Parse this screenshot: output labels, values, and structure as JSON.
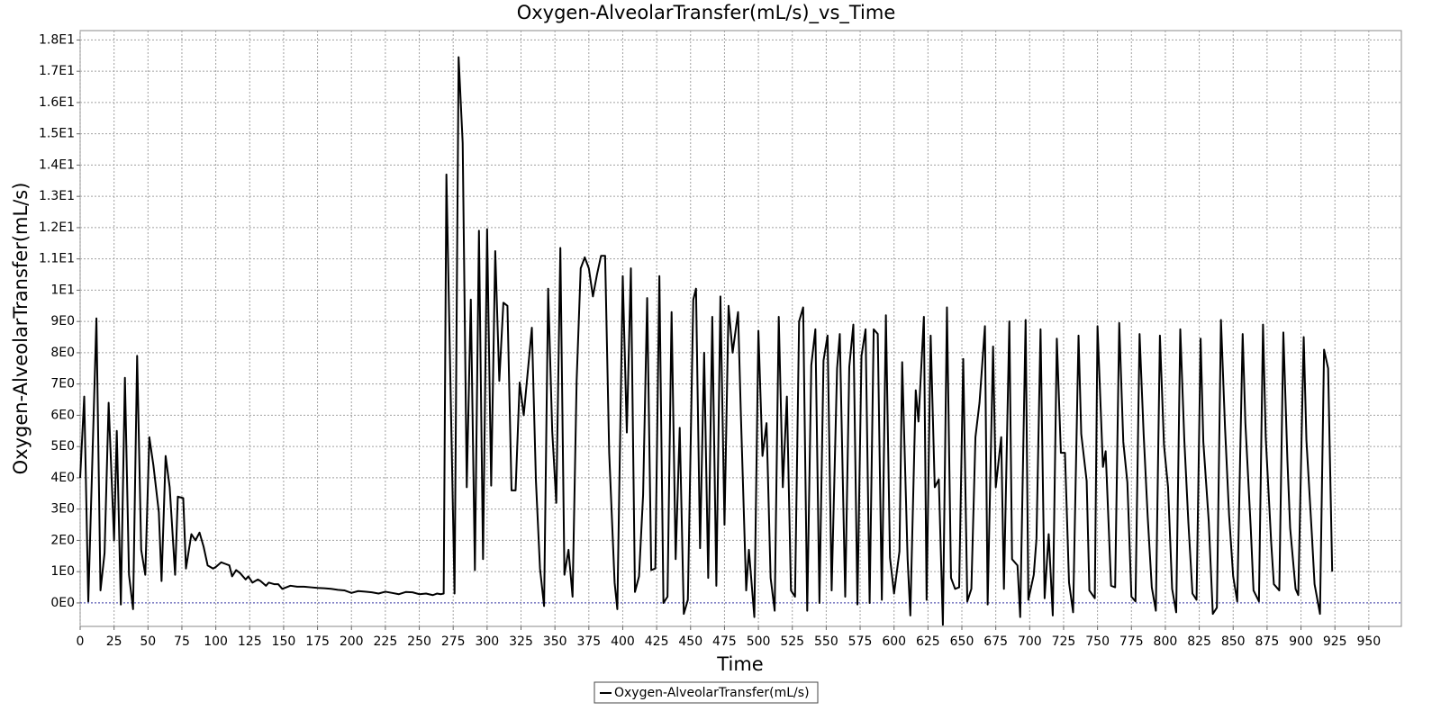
{
  "chart_data": {
    "type": "line",
    "title": "Oxygen-AlveolarTransfer(mL/s)_vs_Time",
    "xlabel": "Time",
    "ylabel": "Oxygen-AlveolarTransfer(mL/s)",
    "grid": true,
    "legend": "bottom",
    "xlim": [
      0,
      974
    ],
    "ylim": [
      -0.75,
      18.3
    ],
    "xticks": [
      0,
      25,
      50,
      75,
      100,
      125,
      150,
      175,
      200,
      225,
      250,
      275,
      300,
      325,
      350,
      375,
      400,
      425,
      450,
      475,
      500,
      525,
      550,
      575,
      600,
      625,
      650,
      675,
      700,
      725,
      750,
      775,
      800,
      825,
      850,
      875,
      900,
      925,
      950
    ],
    "yticks": [
      {
        "value": 0,
        "label": "0E0"
      },
      {
        "value": 1,
        "label": "1E0"
      },
      {
        "value": 2,
        "label": "2E0"
      },
      {
        "value": 3,
        "label": "3E0"
      },
      {
        "value": 4,
        "label": "4E0"
      },
      {
        "value": 5,
        "label": "5E0"
      },
      {
        "value": 6,
        "label": "6E0"
      },
      {
        "value": 7,
        "label": "7E0"
      },
      {
        "value": 8,
        "label": "8E0"
      },
      {
        "value": 9,
        "label": "9E0"
      },
      {
        "value": 10,
        "label": "1E1"
      },
      {
        "value": 11,
        "label": "1.1E1"
      },
      {
        "value": 12,
        "label": "1.2E1"
      },
      {
        "value": 13,
        "label": "1.3E1"
      },
      {
        "value": 14,
        "label": "1.4E1"
      },
      {
        "value": 15,
        "label": "1.5E1"
      },
      {
        "value": 16,
        "label": "1.6E1"
      },
      {
        "value": 17,
        "label": "1.7E1"
      },
      {
        "value": 18,
        "label": "1.8E1"
      }
    ],
    "x": [
      0,
      3,
      6,
      12,
      15,
      18,
      21,
      25,
      27,
      30,
      33,
      36,
      39,
      42,
      45,
      48,
      51,
      54,
      58,
      60,
      63,
      66,
      70,
      72,
      76,
      78,
      82,
      85,
      88,
      91,
      94,
      98,
      100,
      104,
      107,
      110,
      112,
      115,
      118,
      122,
      124,
      127,
      131,
      133,
      137,
      139,
      143,
      146,
      149,
      155,
      160,
      165,
      170,
      175,
      180,
      185,
      190,
      195,
      200,
      205,
      210,
      215,
      220,
      225,
      230,
      235,
      240,
      245,
      250,
      255,
      260,
      263,
      266,
      268,
      270,
      276,
      279,
      282,
      285,
      288,
      291,
      294,
      297,
      300,
      303,
      306,
      309,
      312,
      315,
      318,
      321,
      324,
      327,
      333,
      336,
      339,
      342,
      345,
      348,
      351,
      354,
      357,
      360,
      363,
      366,
      369,
      372,
      375,
      378,
      381,
      384,
      387,
      390,
      394,
      396,
      400,
      403,
      406,
      409,
      412,
      415,
      418,
      421,
      424,
      427,
      430,
      433,
      436,
      439,
      442,
      445,
      448,
      452,
      454,
      457,
      460,
      463,
      466,
      469,
      472,
      475,
      478,
      481,
      485,
      487,
      491,
      493,
      497,
      500,
      503,
      506,
      509,
      512,
      515,
      518,
      521,
      524,
      527,
      530,
      533,
      536,
      539,
      542,
      545,
      548,
      551,
      554,
      558,
      560,
      564,
      567,
      570,
      573,
      576,
      579,
      582,
      585,
      588,
      591,
      594,
      597,
      600,
      604,
      606,
      610,
      612,
      616,
      618,
      622,
      624,
      627,
      630,
      633,
      636,
      639,
      642,
      645,
      648,
      651,
      654,
      657,
      660,
      663,
      667,
      669,
      673,
      675,
      679,
      681,
      685,
      687,
      691,
      693,
      697,
      699,
      703,
      705,
      708,
      711,
      714,
      717,
      720,
      723,
      726,
      729,
      732,
      736,
      738,
      742,
      744,
      748,
      750,
      754,
      756,
      760,
      763,
      766,
      769,
      772,
      775,
      778,
      781,
      784,
      787,
      790,
      793,
      796,
      799,
      802,
      805,
      808,
      811,
      814,
      817,
      820,
      823,
      826,
      828,
      832,
      835,
      838,
      841,
      844,
      847,
      850,
      853,
      857,
      859,
      863,
      865,
      869,
      872,
      874,
      878,
      880,
      884,
      887,
      890,
      892,
      896,
      898,
      902,
      904,
      908,
      910,
      914,
      917,
      920,
      923
    ],
    "series": [
      {
        "name": "Oxygen-AlveolarTransfer(mL/s)",
        "color": "#000000",
        "values": [
          4.0,
          6.6,
          0.05,
          9.1,
          0.4,
          1.6,
          6.4,
          2.0,
          5.5,
          -0.05,
          7.2,
          0.9,
          -0.2,
          7.9,
          1.7,
          0.9,
          5.3,
          4.4,
          2.9,
          0.7,
          4.7,
          3.7,
          0.9,
          3.4,
          3.35,
          1.1,
          2.2,
          2.0,
          2.25,
          1.8,
          1.2,
          1.1,
          1.15,
          1.3,
          1.25,
          1.2,
          0.85,
          1.05,
          0.95,
          0.75,
          0.85,
          0.65,
          0.75,
          0.7,
          0.55,
          0.65,
          0.6,
          0.6,
          0.45,
          0.55,
          0.52,
          0.52,
          0.5,
          0.48,
          0.47,
          0.45,
          0.42,
          0.4,
          0.32,
          0.38,
          0.36,
          0.34,
          0.3,
          0.36,
          0.32,
          0.28,
          0.35,
          0.34,
          0.28,
          0.3,
          0.25,
          0.3,
          0.28,
          0.3,
          13.7,
          0.3,
          17.45,
          14.7,
          3.7,
          9.7,
          1.05,
          11.9,
          1.4,
          11.95,
          3.75,
          11.25,
          7.1,
          9.6,
          9.5,
          3.6,
          3.6,
          7.05,
          6.0,
          8.8,
          3.9,
          1.1,
          -0.1,
          10.05,
          5.5,
          3.2,
          11.35,
          0.9,
          1.7,
          0.2,
          7.1,
          10.7,
          11.05,
          10.7,
          9.8,
          10.5,
          11.1,
          11.1,
          4.8,
          0.65,
          -0.2,
          10.45,
          5.45,
          10.7,
          0.35,
          0.85,
          3.45,
          9.75,
          1.05,
          1.1,
          10.45,
          0.0,
          0.2,
          9.3,
          1.4,
          5.6,
          -0.35,
          0.1,
          9.7,
          10.05,
          1.75,
          8.0,
          0.8,
          9.15,
          0.55,
          9.8,
          2.5,
          9.5,
          8.0,
          9.3,
          6.15,
          0.4,
          1.7,
          -0.45,
          8.7,
          4.7,
          5.75,
          0.8,
          -0.25,
          9.15,
          3.7,
          6.6,
          0.4,
          0.2,
          9.0,
          9.45,
          -0.25,
          7.6,
          8.75,
          0.0,
          7.75,
          8.55,
          0.4,
          7.5,
          8.6,
          0.2,
          7.55,
          8.9,
          -0.05,
          7.9,
          8.75,
          0.0,
          8.75,
          8.6,
          0.1,
          9.2,
          1.45,
          0.3,
          1.65,
          7.7,
          1.4,
          -0.4,
          6.8,
          5.8,
          9.15,
          0.1,
          8.55,
          3.7,
          3.95,
          -0.7,
          9.45,
          0.8,
          0.45,
          0.5,
          7.8,
          0.05,
          0.45,
          5.3,
          6.4,
          8.85,
          -0.05,
          8.2,
          3.7,
          5.3,
          0.45,
          9.0,
          1.4,
          1.2,
          -0.45,
          9.05,
          0.1,
          0.9,
          2.05,
          8.75,
          0.15,
          2.2,
          -0.4,
          8.45,
          4.8,
          4.8,
          0.65,
          -0.3,
          8.55,
          5.4,
          3.9,
          0.4,
          0.15,
          8.85,
          4.35,
          4.85,
          0.55,
          0.5,
          8.95,
          5.15,
          3.85,
          0.2,
          0.05,
          8.6,
          5.4,
          2.75,
          0.5,
          -0.25,
          8.55,
          5.05,
          3.7,
          0.45,
          -0.3,
          8.75,
          5.2,
          2.55,
          0.3,
          0.1,
          8.45,
          5.15,
          2.6,
          -0.35,
          -0.15,
          9.05,
          5.6,
          2.8,
          0.85,
          0.05,
          8.6,
          5.75,
          2.35,
          0.4,
          0.05,
          8.9,
          5.3,
          1.95,
          0.6,
          0.4,
          8.65,
          4.55,
          2.4,
          0.45,
          0.25,
          8.5,
          5.2,
          2.2,
          0.6,
          -0.35,
          8.1,
          7.5,
          1.0
        ]
      }
    ]
  }
}
